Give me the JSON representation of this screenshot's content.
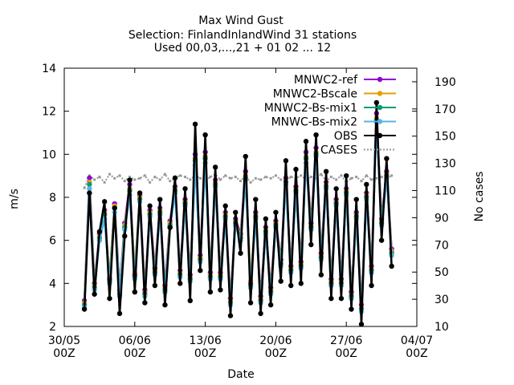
{
  "chart_data": {
    "type": "line",
    "title_lines": [
      "Max Wind Gust",
      "Selection: FinlandInlandWind     31 stations",
      "Used 00,03,...,21 + 01 02 ... 12"
    ],
    "xlabel": "Date",
    "ylabel": "m/s",
    "y2label": "No cases",
    "ylim": [
      2,
      14
    ],
    "y2lim": [
      10,
      200
    ],
    "yticks": [
      2,
      4,
      6,
      8,
      10,
      12,
      14
    ],
    "y2ticks": [
      10,
      30,
      50,
      70,
      90,
      110,
      130,
      150,
      170,
      190
    ],
    "xlim_days": [
      0,
      35
    ],
    "xticks": [
      {
        "day": 0,
        "label1": "30/05",
        "label2": "00Z"
      },
      {
        "day": 7,
        "label1": "06/06",
        "label2": "00Z"
      },
      {
        "day": 14,
        "label1": "13/06",
        "label2": "00Z"
      },
      {
        "day": 21,
        "label1": "20/06",
        "label2": "00Z"
      },
      {
        "day": 28,
        "label1": "27/06",
        "label2": "00Z"
      },
      {
        "day": 35,
        "label1": "04/07",
        "label2": "00Z"
      }
    ],
    "legend_position": "top-right",
    "series": [
      {
        "name": "MNWC2-ref",
        "color": "#9400d3",
        "values": [
          3.2,
          8.9,
          4.0,
          6.3,
          7.4,
          4.2,
          7.7,
          3.7,
          6.8,
          8.6,
          4.4,
          8.1,
          3.7,
          7.4,
          4.7,
          7.5,
          3.9,
          6.9,
          8.5,
          4.6,
          7.9,
          4.4,
          10.0,
          5.3,
          10.1,
          4.5,
          8.8,
          4.5,
          7.3,
          3.3,
          7.0,
          6.3,
          9.2,
          4.0,
          7.3,
          3.4,
          6.6,
          3.8,
          6.9,
          5.1,
          8.9,
          4.8,
          8.5,
          5.0,
          10.1,
          6.8,
          10.3,
          5.4,
          8.7,
          4.2,
          7.9,
          4.2,
          8.4,
          3.6,
          7.3,
          3.0,
          8.2,
          4.8,
          11.9,
          7.0,
          9.2,
          5.6
        ]
      },
      {
        "name": "MNWC2-Bscale",
        "color": "#e69f00",
        "values": [
          3.1,
          8.7,
          3.9,
          6.2,
          7.3,
          4.3,
          7.6,
          3.6,
          6.7,
          8.4,
          4.5,
          8.0,
          3.6,
          7.3,
          4.6,
          7.4,
          3.8,
          6.8,
          8.4,
          4.5,
          7.8,
          4.3,
          9.8,
          5.2,
          9.9,
          4.4,
          8.7,
          4.4,
          7.2,
          3.2,
          6.9,
          6.2,
          9.0,
          4.1,
          7.2,
          3.3,
          6.5,
          3.7,
          6.8,
          5.0,
          8.8,
          4.7,
          8.4,
          4.9,
          9.9,
          6.7,
          10.1,
          5.3,
          8.6,
          4.1,
          7.8,
          4.1,
          8.3,
          3.5,
          7.2,
          2.9,
          8.1,
          4.7,
          11.7,
          6.9,
          9.1,
          5.5
        ]
      },
      {
        "name": "MNWC2-Bs-mix1",
        "color": "#009e73",
        "values": [
          3.0,
          8.6,
          3.8,
          6.1,
          7.2,
          4.1,
          7.5,
          3.5,
          6.6,
          8.3,
          4.3,
          7.9,
          3.5,
          7.2,
          4.5,
          7.3,
          3.7,
          6.7,
          8.3,
          4.4,
          7.7,
          4.2,
          9.7,
          5.1,
          9.8,
          4.3,
          8.6,
          4.3,
          7.1,
          3.1,
          6.8,
          6.1,
          8.9,
          3.9,
          7.1,
          3.2,
          6.4,
          3.6,
          6.7,
          4.9,
          8.7,
          4.6,
          8.3,
          4.8,
          9.8,
          6.6,
          10.0,
          5.2,
          8.5,
          4.0,
          7.7,
          4.0,
          8.2,
          3.4,
          7.1,
          2.8,
          8.0,
          4.6,
          11.6,
          6.8,
          9.0,
          5.4
        ]
      },
      {
        "name": "MNWC-Bs-mix2",
        "color": "#56b4e9",
        "values": [
          2.9,
          8.4,
          3.7,
          6.0,
          7.0,
          4.0,
          7.3,
          3.4,
          6.5,
          8.1,
          4.2,
          7.8,
          3.4,
          7.1,
          4.4,
          7.2,
          3.6,
          6.6,
          8.2,
          4.3,
          7.6,
          4.1,
          9.5,
          5.0,
          9.6,
          4.2,
          8.5,
          4.2,
          7.0,
          3.0,
          6.7,
          6.0,
          8.8,
          3.8,
          7.0,
          3.1,
          6.3,
          3.5,
          6.6,
          4.8,
          8.6,
          4.5,
          8.2,
          4.7,
          9.6,
          6.5,
          9.9,
          5.1,
          8.4,
          3.9,
          7.6,
          3.9,
          8.1,
          3.3,
          7.0,
          2.7,
          7.9,
          4.5,
          11.5,
          6.7,
          8.9,
          5.3
        ]
      },
      {
        "name": "OBS",
        "color": "#000000",
        "values": [
          2.8,
          8.2,
          3.5,
          6.4,
          7.8,
          3.3,
          7.5,
          2.6,
          6.2,
          8.8,
          3.6,
          8.2,
          3.1,
          7.6,
          3.9,
          7.9,
          3.0,
          6.6,
          8.9,
          4.0,
          8.4,
          3.2,
          11.4,
          4.6,
          10.9,
          3.6,
          9.4,
          3.7,
          7.6,
          2.5,
          7.3,
          5.4,
          9.9,
          3.1,
          7.9,
          2.6,
          7.0,
          3.0,
          7.3,
          4.1,
          9.7,
          3.9,
          9.3,
          4.0,
          10.6,
          5.8,
          10.9,
          4.4,
          9.2,
          3.3,
          8.4,
          3.3,
          9.0,
          2.8,
          7.9,
          2.1,
          8.6,
          3.9,
          12.4,
          6.0,
          9.8,
          4.8
        ]
      },
      {
        "name": "CASES",
        "color": "#999999",
        "axis": "y2",
        "values": [
          112,
          121,
          118,
          120,
          116,
          122,
          119,
          121,
          117,
          120,
          118,
          119,
          121,
          116,
          120,
          118,
          122,
          117,
          119,
          121,
          120,
          118,
          121,
          119,
          117,
          120,
          122,
          118,
          121,
          119,
          120,
          117,
          121,
          116,
          119,
          118,
          120,
          119,
          121,
          118,
          117,
          120,
          119,
          121,
          118,
          120,
          119,
          122,
          117,
          120,
          118,
          121,
          116,
          119,
          120,
          117,
          121,
          118,
          119,
          120,
          118,
          121
        ]
      }
    ]
  }
}
